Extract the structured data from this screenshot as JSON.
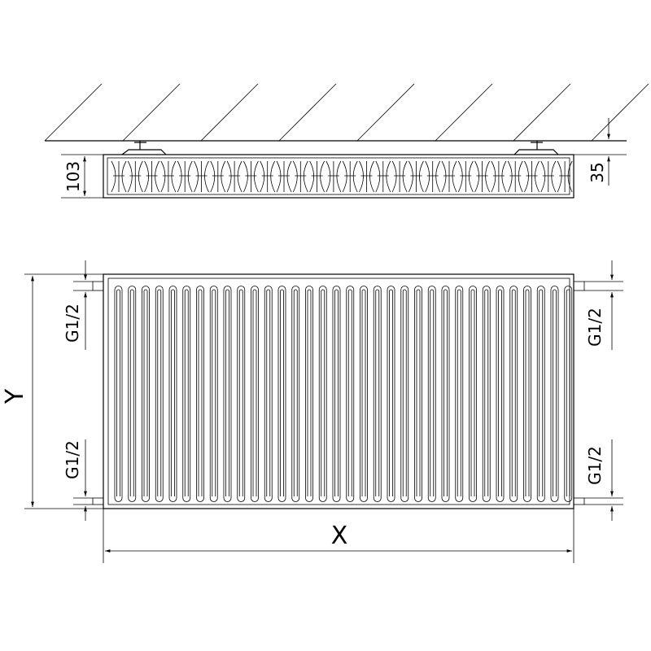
{
  "top_view": {
    "depth_label": "103",
    "wall_gap_label": "35"
  },
  "front_view": {
    "height_label": "Y",
    "width_label": "X",
    "connection_labels": [
      "G1/2",
      "G1/2",
      "G1/2",
      "G1/2"
    ]
  },
  "colors": {
    "line": "#000000",
    "background": "#ffffff"
  }
}
